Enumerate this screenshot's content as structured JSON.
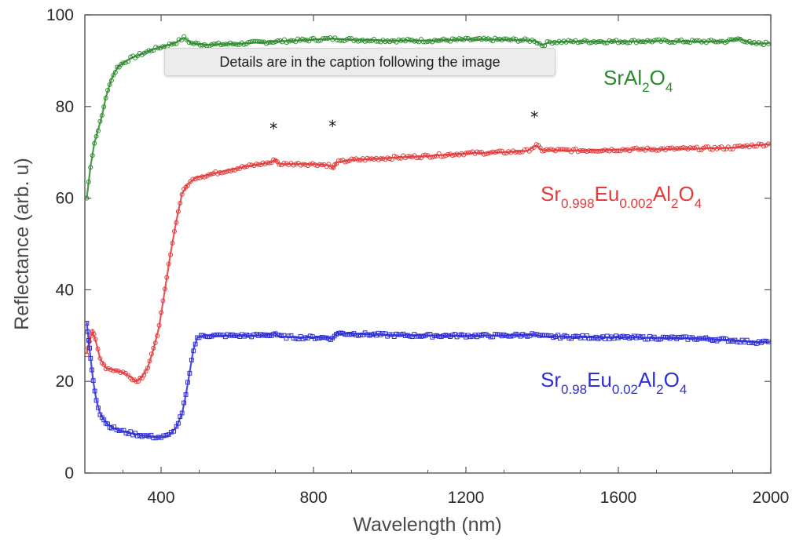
{
  "chart_data": {
    "type": "scatter",
    "xlabel": "Wavelength (nm)",
    "ylabel": "Reflectance (arb. u)",
    "xlim": [
      200,
      2000
    ],
    "ylim": [
      0,
      100
    ],
    "xticks": [
      400,
      800,
      1200,
      1600,
      2000
    ],
    "xtick_labels": [
      "400",
      "800",
      "1200",
      "1600",
      "2000"
    ],
    "yticks": [
      0,
      20,
      40,
      60,
      80,
      100
    ],
    "ytick_labels": [
      "0",
      "20",
      "40",
      "60",
      "80",
      "100"
    ],
    "annotation_symbol": "*",
    "annotations": [
      {
        "text": "*",
        "x": 695,
        "y": 75
      },
      {
        "text": "*",
        "x": 850,
        "y": 75.5
      },
      {
        "text": "*",
        "x": 1380,
        "y": 77.5
      }
    ],
    "series": [
      {
        "name": "SrAl2O4",
        "label_parts": [
          {
            "t": "SrAl",
            "sub": false
          },
          {
            "t": "2",
            "sub": true
          },
          {
            "t": "O",
            "sub": false
          },
          {
            "t": "4",
            "sub": true
          }
        ],
        "color": "#2a8a2a",
        "marker": "circle",
        "points": [
          [
            205,
            60
          ],
          [
            215,
            67
          ],
          [
            225,
            72
          ],
          [
            235,
            75
          ],
          [
            245,
            78
          ],
          [
            255,
            82
          ],
          [
            270,
            86
          ],
          [
            285,
            88.5
          ],
          [
            300,
            89.5
          ],
          [
            320,
            90.5
          ],
          [
            350,
            91.5
          ],
          [
            380,
            92.5
          ],
          [
            410,
            93.2
          ],
          [
            440,
            94
          ],
          [
            460,
            95
          ],
          [
            480,
            93.8
          ],
          [
            520,
            93.5
          ],
          [
            600,
            93.7
          ],
          [
            700,
            94.2
          ],
          [
            800,
            94.6
          ],
          [
            850,
            94.8
          ],
          [
            900,
            94.6
          ],
          [
            1000,
            94.4
          ],
          [
            1100,
            94.4
          ],
          [
            1200,
            94.6
          ],
          [
            1300,
            94.6
          ],
          [
            1380,
            94.4
          ],
          [
            1400,
            93.4
          ],
          [
            1420,
            94.1
          ],
          [
            1500,
            94.2
          ],
          [
            1600,
            94.2
          ],
          [
            1700,
            94.3
          ],
          [
            1800,
            94.2
          ],
          [
            1880,
            94.2
          ],
          [
            1920,
            94.8
          ],
          [
            1950,
            93.7
          ],
          [
            2000,
            93.8
          ]
        ]
      },
      {
        "name": "Sr0.998Eu0.002Al2O4",
        "label_parts": [
          {
            "t": "Sr",
            "sub": false
          },
          {
            "t": "0.998",
            "sub": true
          },
          {
            "t": "Eu",
            "sub": false
          },
          {
            "t": "0.002",
            "sub": true
          },
          {
            "t": "Al",
            "sub": false
          },
          {
            "t": "2",
            "sub": true
          },
          {
            "t": "O",
            "sub": false
          },
          {
            "t": "4",
            "sub": true
          }
        ],
        "color": "#e23b3b",
        "marker": "circle",
        "points": [
          [
            205,
            26
          ],
          [
            212,
            29
          ],
          [
            220,
            31
          ],
          [
            228,
            29
          ],
          [
            240,
            25
          ],
          [
            255,
            23
          ],
          [
            275,
            22.5
          ],
          [
            300,
            22
          ],
          [
            320,
            21
          ],
          [
            335,
            20
          ],
          [
            350,
            21
          ],
          [
            365,
            23
          ],
          [
            380,
            27
          ],
          [
            395,
            32
          ],
          [
            410,
            40
          ],
          [
            425,
            48
          ],
          [
            440,
            55
          ],
          [
            455,
            61
          ],
          [
            470,
            63
          ],
          [
            490,
            64.5
          ],
          [
            520,
            65
          ],
          [
            560,
            65.8
          ],
          [
            600,
            66.5
          ],
          [
            650,
            67.3
          ],
          [
            690,
            67.8
          ],
          [
            700,
            68.5
          ],
          [
            710,
            67.4
          ],
          [
            760,
            67.5
          ],
          [
            810,
            67.4
          ],
          [
            840,
            67.2
          ],
          [
            852,
            66.5
          ],
          [
            860,
            67.8
          ],
          [
            900,
            68.3
          ],
          [
            1000,
            68.8
          ],
          [
            1100,
            69.2
          ],
          [
            1200,
            69.8
          ],
          [
            1300,
            70
          ],
          [
            1360,
            70.3
          ],
          [
            1385,
            71.5
          ],
          [
            1400,
            70.5
          ],
          [
            1500,
            70.4
          ],
          [
            1600,
            70.6
          ],
          [
            1700,
            70.7
          ],
          [
            1800,
            70.8
          ],
          [
            1900,
            71
          ],
          [
            1950,
            71.5
          ],
          [
            2000,
            71.8
          ]
        ]
      },
      {
        "name": "Sr0.98Eu0.02Al2O4",
        "label_parts": [
          {
            "t": "Sr",
            "sub": false
          },
          {
            "t": "0.98",
            "sub": true
          },
          {
            "t": "Eu",
            "sub": false
          },
          {
            "t": "0.02",
            "sub": true
          },
          {
            "t": "Al",
            "sub": false
          },
          {
            "t": "2",
            "sub": true
          },
          {
            "t": "O",
            "sub": false
          },
          {
            "t": "4",
            "sub": true
          }
        ],
        "color": "#2e2ed6",
        "marker": "square",
        "points": [
          [
            205,
            33
          ],
          [
            210,
            29
          ],
          [
            215,
            25
          ],
          [
            222,
            20
          ],
          [
            230,
            16
          ],
          [
            240,
            13
          ],
          [
            255,
            11
          ],
          [
            270,
            10
          ],
          [
            290,
            9.3
          ],
          [
            320,
            8.7
          ],
          [
            350,
            8.2
          ],
          [
            380,
            7.9
          ],
          [
            400,
            7.8
          ],
          [
            420,
            8.2
          ],
          [
            440,
            10
          ],
          [
            455,
            13
          ],
          [
            465,
            17
          ],
          [
            475,
            22
          ],
          [
            485,
            27
          ],
          [
            495,
            29.5
          ],
          [
            510,
            30
          ],
          [
            550,
            30
          ],
          [
            600,
            30
          ],
          [
            650,
            30
          ],
          [
            690,
            30.2
          ],
          [
            700,
            30.5
          ],
          [
            710,
            29.8
          ],
          [
            760,
            29.6
          ],
          [
            810,
            29.6
          ],
          [
            840,
            29.5
          ],
          [
            850,
            29.3
          ],
          [
            860,
            30.5
          ],
          [
            900,
            30.4
          ],
          [
            1000,
            30.1
          ],
          [
            1100,
            30
          ],
          [
            1200,
            30
          ],
          [
            1300,
            30
          ],
          [
            1380,
            30.2
          ],
          [
            1400,
            29.8
          ],
          [
            1500,
            29.7
          ],
          [
            1600,
            29.6
          ],
          [
            1700,
            29.5
          ],
          [
            1800,
            29.4
          ],
          [
            1900,
            29
          ],
          [
            1950,
            28.6
          ],
          [
            2000,
            28.6
          ]
        ]
      }
    ]
  },
  "tooltip": {
    "text": "Details are in the caption following the image"
  }
}
